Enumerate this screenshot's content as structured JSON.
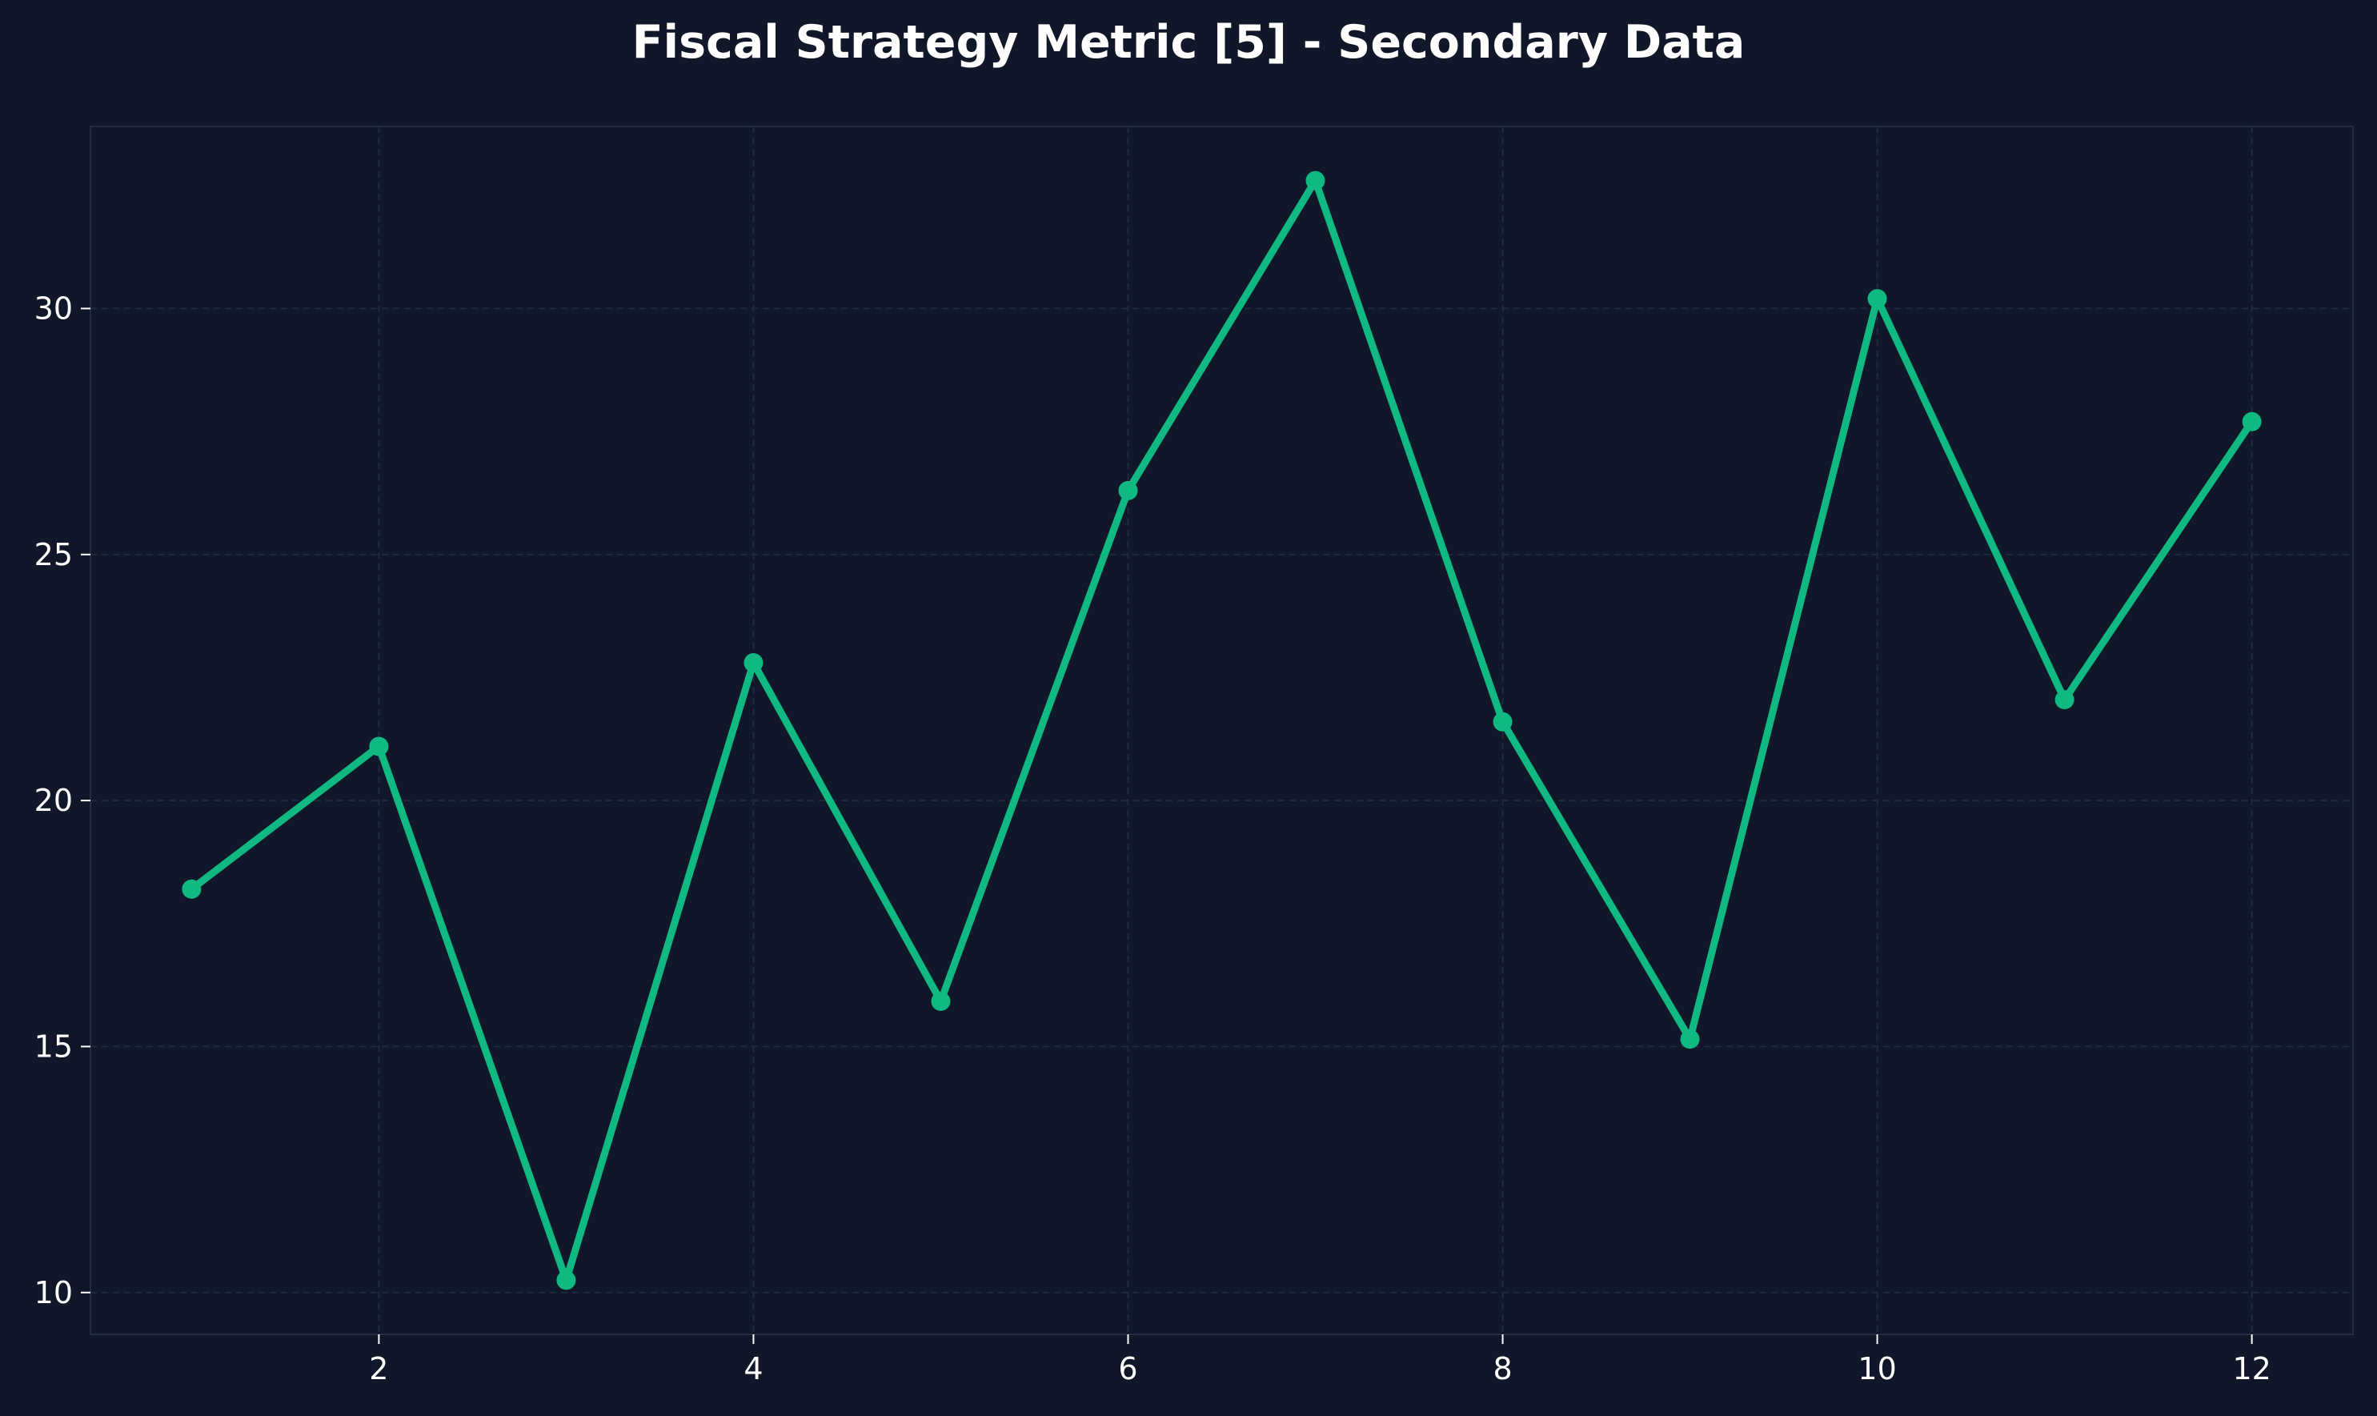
{
  "chart_data": {
    "type": "line",
    "title": "Fiscal Strategy Metric [5] - Secondary Data",
    "xlabel": "",
    "ylabel": "",
    "x": [
      1,
      2,
      3,
      4,
      5,
      6,
      7,
      8,
      9,
      10,
      11,
      12
    ],
    "series": [
      {
        "values": [
          18.2,
          21.1,
          10.25,
          22.8,
          15.92,
          26.3,
          32.6,
          21.6,
          15.15,
          30.2,
          22.05,
          27.7
        ]
      }
    ],
    "xlim": [
      0.46,
      12.54
    ],
    "ylim": [
      9.15,
      33.7
    ],
    "xticks": [
      2,
      4,
      6,
      8,
      10,
      12
    ],
    "yticks": [
      10,
      15,
      20,
      25,
      30
    ],
    "grid": true,
    "line_color": "#10b981",
    "background_color": "#0f1729",
    "grid_color": "#1e2a3d",
    "text_color": "#ffffff"
  }
}
